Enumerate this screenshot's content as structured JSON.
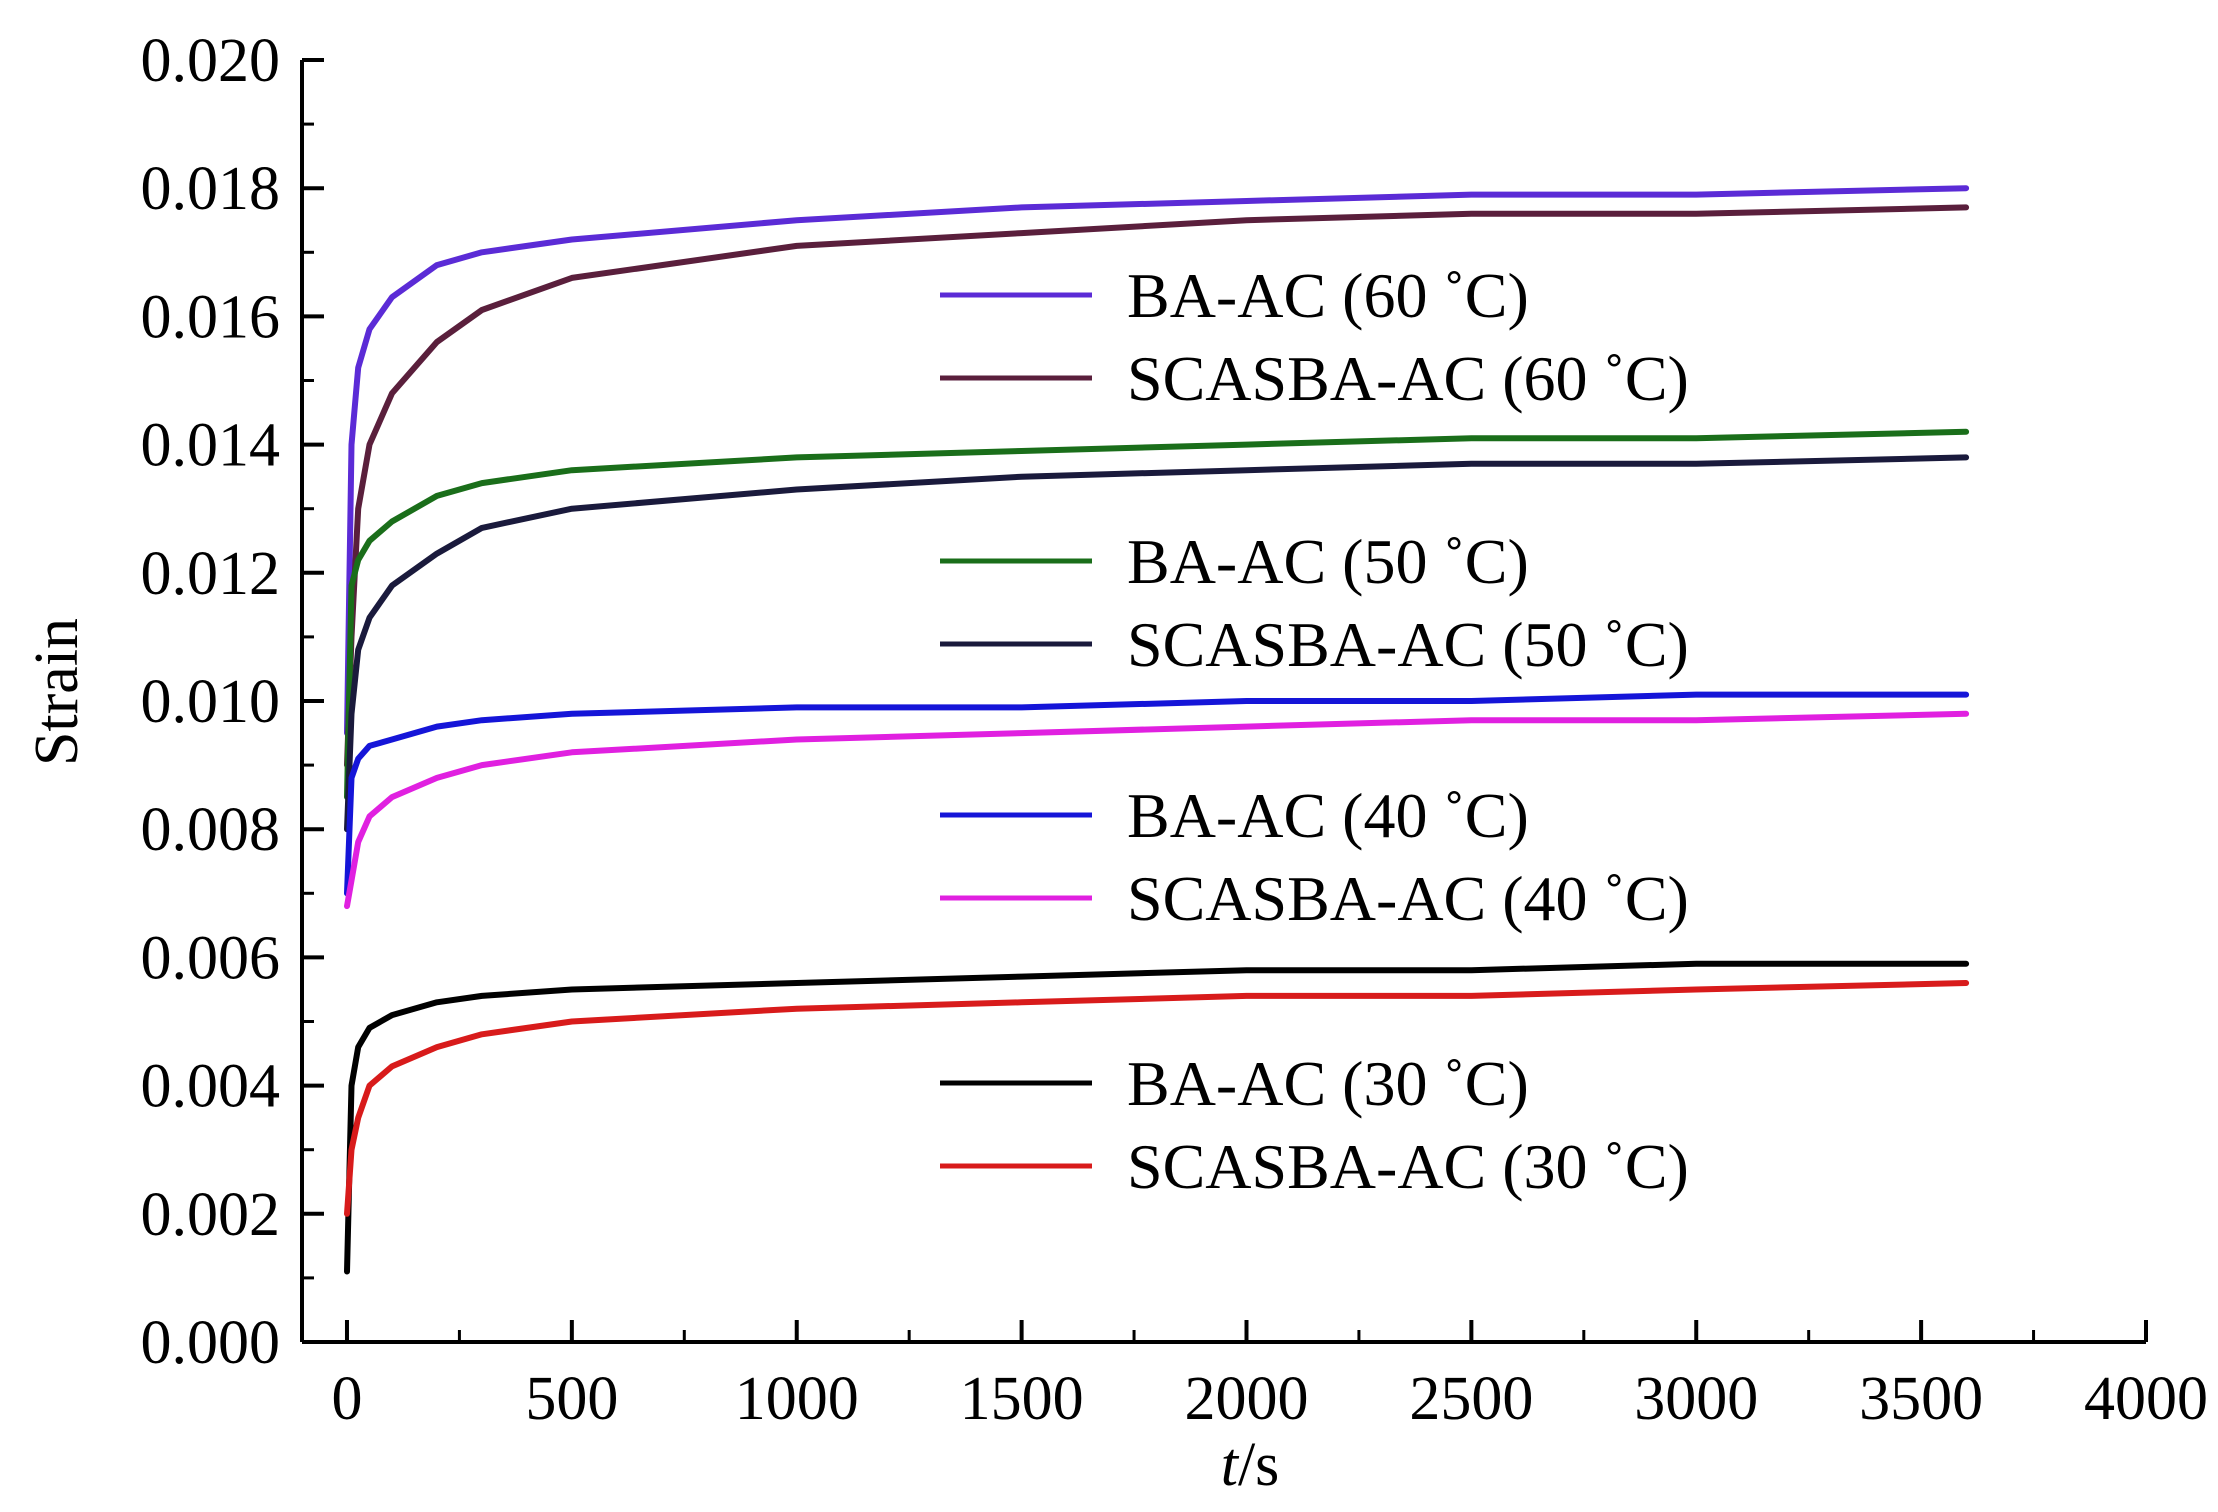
{
  "chart_data": {
    "type": "line",
    "title": "",
    "xlabel_italic": "t",
    "xlabel_rest": "/s",
    "ylabel": "Strain",
    "xlim": [
      -100,
      4000
    ],
    "ylim": [
      0,
      0.02
    ],
    "xticks": [
      0,
      500,
      1000,
      1500,
      2000,
      2500,
      3000,
      3500,
      4000
    ],
    "xtick_labels": [
      "0",
      "500",
      "1000",
      "1500",
      "2000",
      "2500",
      "3000",
      "3500",
      "4000"
    ],
    "yticks": [
      0.0,
      0.002,
      0.004,
      0.006,
      0.008,
      0.01,
      0.012,
      0.014,
      0.016,
      0.018,
      0.02
    ],
    "ytick_labels": [
      "0.000",
      "0.002",
      "0.004",
      "0.006",
      "0.008",
      "0.010",
      "0.012",
      "0.014",
      "0.016",
      "0.018",
      "0.020"
    ],
    "grid": false,
    "legend_position": "center-right",
    "x": [
      0,
      10,
      25,
      50,
      100,
      200,
      300,
      500,
      1000,
      1500,
      2000,
      2500,
      3000,
      3600
    ],
    "series": [
      {
        "name": "BA-AC (60 ˚C)",
        "color": "#5b2bd6",
        "values": [
          0.0095,
          0.014,
          0.0152,
          0.0158,
          0.0163,
          0.0168,
          0.017,
          0.0172,
          0.0175,
          0.0177,
          0.0178,
          0.0179,
          0.0179,
          0.018
        ]
      },
      {
        "name": "SCASBA-AC (60 ˚C)",
        "color": "#5a1f3c",
        "values": [
          0.009,
          0.011,
          0.013,
          0.014,
          0.0148,
          0.0156,
          0.0161,
          0.0166,
          0.0171,
          0.0173,
          0.0175,
          0.0176,
          0.0176,
          0.0177
        ]
      },
      {
        "name": "BA-AC (50 ˚C)",
        "color": "#1a6e1a",
        "values": [
          0.0085,
          0.0118,
          0.0122,
          0.0125,
          0.0128,
          0.0132,
          0.0134,
          0.0136,
          0.0138,
          0.0139,
          0.014,
          0.0141,
          0.0141,
          0.0142
        ]
      },
      {
        "name": "SCASBA-AC (50 ˚C)",
        "color": "#1a1a3c",
        "values": [
          0.008,
          0.0098,
          0.0108,
          0.0113,
          0.0118,
          0.0123,
          0.0127,
          0.013,
          0.0133,
          0.0135,
          0.0136,
          0.0137,
          0.0137,
          0.0138
        ]
      },
      {
        "name": "BA-AC (40 ˚C)",
        "color": "#1515d8",
        "values": [
          0.007,
          0.0088,
          0.0091,
          0.0093,
          0.0094,
          0.0096,
          0.0097,
          0.0098,
          0.0099,
          0.0099,
          0.01,
          0.01,
          0.0101,
          0.0101
        ]
      },
      {
        "name": "SCASBA-AC (40 ˚C)",
        "color": "#e020e0",
        "values": [
          0.0068,
          0.0072,
          0.0078,
          0.0082,
          0.0085,
          0.0088,
          0.009,
          0.0092,
          0.0094,
          0.0095,
          0.0096,
          0.0097,
          0.0097,
          0.0098
        ]
      },
      {
        "name": "BA-AC (30 ˚C)",
        "color": "#000000",
        "values": [
          0.0011,
          0.004,
          0.0046,
          0.0049,
          0.0051,
          0.0053,
          0.0054,
          0.0055,
          0.0056,
          0.0057,
          0.0058,
          0.0058,
          0.0059,
          0.0059
        ]
      },
      {
        "name": "SCASBA-AC (30 ˚C)",
        "color": "#d81b1b",
        "values": [
          0.002,
          0.003,
          0.0035,
          0.004,
          0.0043,
          0.0046,
          0.0048,
          0.005,
          0.0052,
          0.0053,
          0.0054,
          0.0054,
          0.0055,
          0.0056
        ]
      }
    ]
  }
}
